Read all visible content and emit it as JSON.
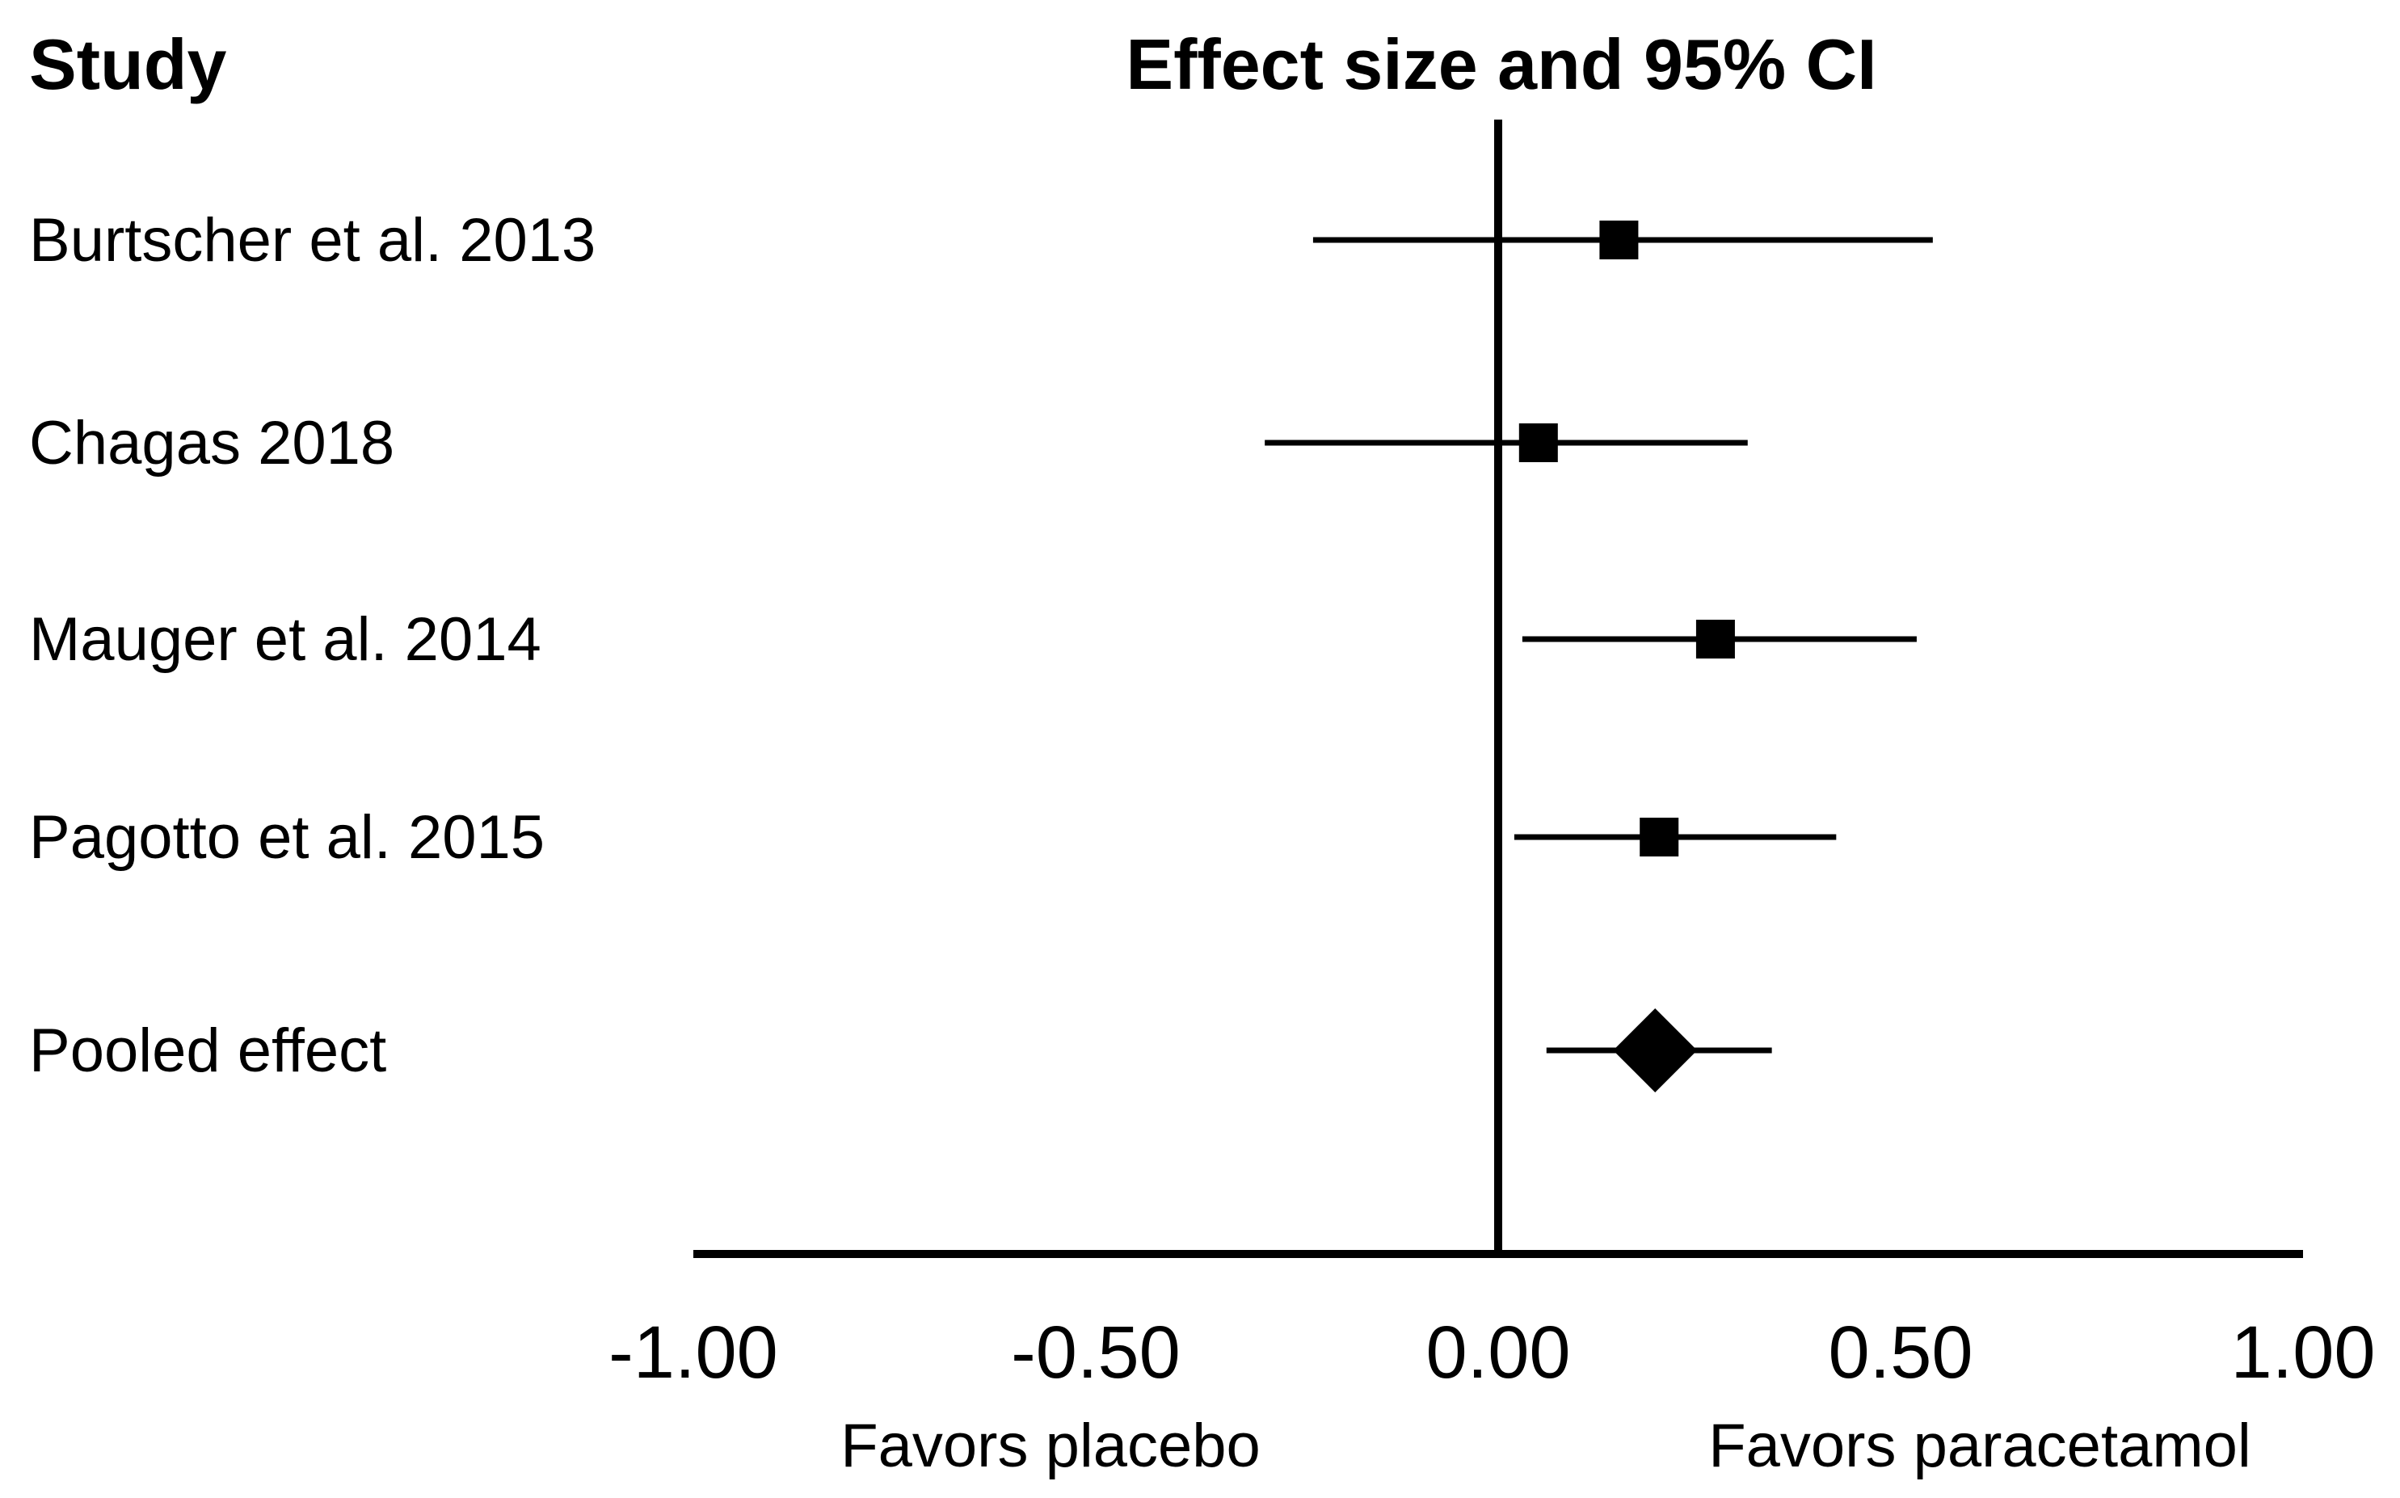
{
  "chart_data": {
    "type": "forest",
    "title": "Effect size and 95% CI",
    "column_header": "Study",
    "xlim": [
      -1.0,
      1.0
    ],
    "xticks": [
      -1.0,
      -0.5,
      0.0,
      0.5,
      1.0
    ],
    "xtick_labels": [
      "-1.00",
      "-0.50",
      "0.00",
      "0.50",
      "1.00"
    ],
    "favor_left": "Favors placebo",
    "favor_right": "Favors paracetamol",
    "reference_line": 0.0,
    "studies": [
      {
        "name": "Burtscher et al. 2013",
        "effect": 0.15,
        "lower": -0.23,
        "upper": 0.54,
        "marker": "square"
      },
      {
        "name": "Chagas 2018",
        "effect": 0.05,
        "lower": -0.29,
        "upper": 0.31,
        "marker": "square"
      },
      {
        "name": "Mauger et al. 2014",
        "effect": 0.27,
        "lower": 0.03,
        "upper": 0.52,
        "marker": "square"
      },
      {
        "name": "Pagotto et al. 2015",
        "effect": 0.2,
        "lower": 0.02,
        "upper": 0.42,
        "marker": "square"
      },
      {
        "name": "Pooled effect",
        "effect": 0.195,
        "lower": 0.06,
        "upper": 0.34,
        "marker": "diamond"
      }
    ]
  }
}
